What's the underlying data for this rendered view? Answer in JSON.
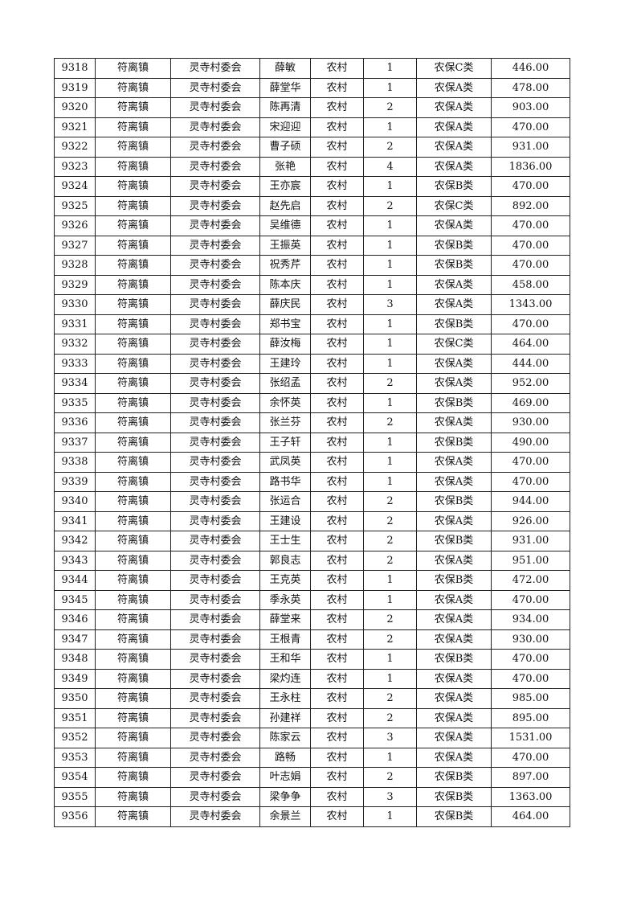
{
  "table": {
    "rows": [
      [
        "9318",
        "符离镇",
        "灵寺村委会",
        "薛敏",
        "农村",
        "1",
        "农保C类",
        "446.00"
      ],
      [
        "9319",
        "符离镇",
        "灵寺村委会",
        "薛堂华",
        "农村",
        "1",
        "农保A类",
        "478.00"
      ],
      [
        "9320",
        "符离镇",
        "灵寺村委会",
        "陈再清",
        "农村",
        "2",
        "农保A类",
        "903.00"
      ],
      [
        "9321",
        "符离镇",
        "灵寺村委会",
        "宋迎迎",
        "农村",
        "1",
        "农保A类",
        "470.00"
      ],
      [
        "9322",
        "符离镇",
        "灵寺村委会",
        "曹子硕",
        "农村",
        "2",
        "农保A类",
        "931.00"
      ],
      [
        "9323",
        "符离镇",
        "灵寺村委会",
        "张艳",
        "农村",
        "4",
        "农保A类",
        "1836.00"
      ],
      [
        "9324",
        "符离镇",
        "灵寺村委会",
        "王亦宸",
        "农村",
        "1",
        "农保B类",
        "470.00"
      ],
      [
        "9325",
        "符离镇",
        "灵寺村委会",
        "赵先启",
        "农村",
        "2",
        "农保C类",
        "892.00"
      ],
      [
        "9326",
        "符离镇",
        "灵寺村委会",
        "吴维德",
        "农村",
        "1",
        "农保A类",
        "470.00"
      ],
      [
        "9327",
        "符离镇",
        "灵寺村委会",
        "王振英",
        "农村",
        "1",
        "农保B类",
        "470.00"
      ],
      [
        "9328",
        "符离镇",
        "灵寺村委会",
        "祝秀芹",
        "农村",
        "1",
        "农保B类",
        "470.00"
      ],
      [
        "9329",
        "符离镇",
        "灵寺村委会",
        "陈本庆",
        "农村",
        "1",
        "农保A类",
        "458.00"
      ],
      [
        "9330",
        "符离镇",
        "灵寺村委会",
        "薛庆民",
        "农村",
        "3",
        "农保A类",
        "1343.00"
      ],
      [
        "9331",
        "符离镇",
        "灵寺村委会",
        "郑书宝",
        "农村",
        "1",
        "农保B类",
        "470.00"
      ],
      [
        "9332",
        "符离镇",
        "灵寺村委会",
        "薛汝梅",
        "农村",
        "1",
        "农保C类",
        "464.00"
      ],
      [
        "9333",
        "符离镇",
        "灵寺村委会",
        "王建玲",
        "农村",
        "1",
        "农保A类",
        "444.00"
      ],
      [
        "9334",
        "符离镇",
        "灵寺村委会",
        "张绍孟",
        "农村",
        "2",
        "农保A类",
        "952.00"
      ],
      [
        "9335",
        "符离镇",
        "灵寺村委会",
        "余怀英",
        "农村",
        "1",
        "农保B类",
        "469.00"
      ],
      [
        "9336",
        "符离镇",
        "灵寺村委会",
        "张兰芬",
        "农村",
        "2",
        "农保A类",
        "930.00"
      ],
      [
        "9337",
        "符离镇",
        "灵寺村委会",
        "王子轩",
        "农村",
        "1",
        "农保B类",
        "490.00"
      ],
      [
        "9338",
        "符离镇",
        "灵寺村委会",
        "武凤英",
        "农村",
        "1",
        "农保A类",
        "470.00"
      ],
      [
        "9339",
        "符离镇",
        "灵寺村委会",
        "路书华",
        "农村",
        "1",
        "农保A类",
        "470.00"
      ],
      [
        "9340",
        "符离镇",
        "灵寺村委会",
        "张运合",
        "农村",
        "2",
        "农保B类",
        "944.00"
      ],
      [
        "9341",
        "符离镇",
        "灵寺村委会",
        "王建设",
        "农村",
        "2",
        "农保A类",
        "926.00"
      ],
      [
        "9342",
        "符离镇",
        "灵寺村委会",
        "王士生",
        "农村",
        "2",
        "农保B类",
        "931.00"
      ],
      [
        "9343",
        "符离镇",
        "灵寺村委会",
        "郭良志",
        "农村",
        "2",
        "农保A类",
        "951.00"
      ],
      [
        "9344",
        "符离镇",
        "灵寺村委会",
        "王克英",
        "农村",
        "1",
        "农保B类",
        "472.00"
      ],
      [
        "9345",
        "符离镇",
        "灵寺村委会",
        "季永英",
        "农村",
        "1",
        "农保A类",
        "470.00"
      ],
      [
        "9346",
        "符离镇",
        "灵寺村委会",
        "薛堂来",
        "农村",
        "2",
        "农保A类",
        "934.00"
      ],
      [
        "9347",
        "符离镇",
        "灵寺村委会",
        "王根青",
        "农村",
        "2",
        "农保A类",
        "930.00"
      ],
      [
        "9348",
        "符离镇",
        "灵寺村委会",
        "王和华",
        "农村",
        "1",
        "农保B类",
        "470.00"
      ],
      [
        "9349",
        "符离镇",
        "灵寺村委会",
        "梁灼连",
        "农村",
        "1",
        "农保A类",
        "470.00"
      ],
      [
        "9350",
        "符离镇",
        "灵寺村委会",
        "王永柱",
        "农村",
        "2",
        "农保A类",
        "985.00"
      ],
      [
        "9351",
        "符离镇",
        "灵寺村委会",
        "孙建祥",
        "农村",
        "2",
        "农保A类",
        "895.00"
      ],
      [
        "9352",
        "符离镇",
        "灵寺村委会",
        "陈家云",
        "农村",
        "3",
        "农保A类",
        "1531.00"
      ],
      [
        "9353",
        "符离镇",
        "灵寺村委会",
        "路畅",
        "农村",
        "1",
        "农保A类",
        "470.00"
      ],
      [
        "9354",
        "符离镇",
        "灵寺村委会",
        "叶志娟",
        "农村",
        "2",
        "农保B类",
        "897.00"
      ],
      [
        "9355",
        "符离镇",
        "灵寺村委会",
        "梁争争",
        "农村",
        "3",
        "农保B类",
        "1363.00"
      ],
      [
        "9356",
        "符离镇",
        "灵寺村委会",
        "余景兰",
        "农村",
        "1",
        "农保B类",
        "464.00"
      ]
    ]
  }
}
